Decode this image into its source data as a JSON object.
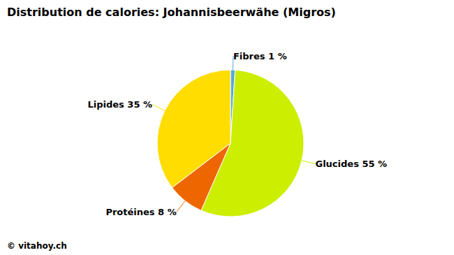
{
  "chart_data": {
    "type": "pie",
    "title": "Distribution de calories: Johannisbeerwähe (Migros)",
    "categories": [
      "Fibres 1 %",
      "Glucides 55 %",
      "Protéines 8 %",
      "Lipides 35 %"
    ],
    "values": [
      1,
      55,
      8,
      35
    ],
    "colors": [
      "#55AADD",
      "#CCEE00",
      "#EE6600",
      "#FFDD00"
    ],
    "annotations": [
      "© vitahoy.ch"
    ]
  }
}
